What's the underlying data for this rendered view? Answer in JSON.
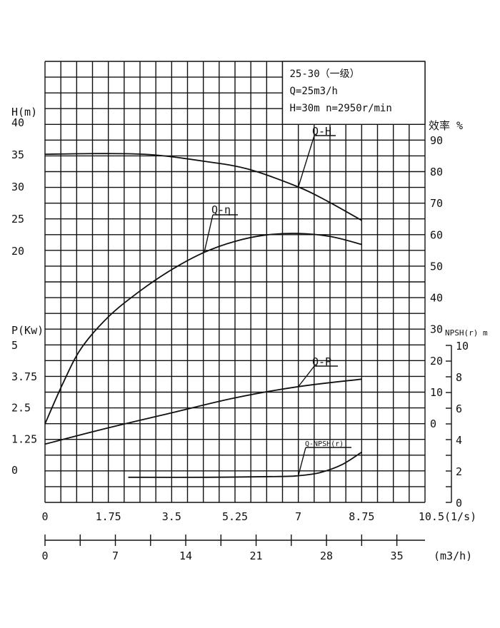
{
  "chart_data": {
    "type": "line",
    "title": "",
    "legend": {
      "lines": [
        "25-30（一级）",
        "Q=25m3/h",
        "H=30m  n=2950r/min"
      ],
      "placement": "top-right"
    },
    "x_axis": {
      "unit": "(1/s)",
      "range": [
        0,
        10.5
      ],
      "tick_values": [
        0,
        1.75,
        3.5,
        5.25,
        7,
        8.75,
        10.5
      ],
      "tick_labels": [
        "0",
        "1.75",
        "3.5",
        "5.25",
        "7",
        "8.75",
        "10.5"
      ]
    },
    "x_axis_secondary": {
      "unit": "(m3/h)",
      "range": [
        0,
        37.8
      ],
      "tick_values": [
        0,
        7,
        14,
        21,
        28,
        35
      ],
      "tick_labels": [
        "0",
        "7",
        "14",
        "21",
        "28",
        "35"
      ]
    },
    "y_axes": {
      "head": {
        "unit": "H(m)",
        "tick_values": [
          20,
          25,
          30,
          35,
          40
        ],
        "tick_labels": [
          "20",
          "25",
          "30",
          "35",
          "40"
        ]
      },
      "power": {
        "unit": "P(Kw)",
        "tick_values": [
          0,
          1.25,
          2.5,
          3.75,
          5
        ],
        "tick_labels": [
          "0",
          "1.25",
          "2.5",
          "3.75",
          "5"
        ]
      },
      "efficiency": {
        "unit": "效率 %",
        "tick_values": [
          0,
          10,
          20,
          30,
          40,
          50,
          60,
          70,
          80,
          90
        ],
        "tick_labels": [
          "0",
          "10",
          "20",
          "30",
          "40",
          "50",
          "60",
          "70",
          "80",
          "90"
        ]
      },
      "npsh": {
        "unit": "NPSH(r) m",
        "range": [
          0,
          10
        ],
        "tick_values": [
          0,
          2,
          4,
          6,
          8,
          10
        ],
        "tick_labels": [
          "0",
          "2",
          "4",
          "6",
          "8",
          "10"
        ]
      }
    },
    "grid": true,
    "series": [
      {
        "name": "Q-H",
        "axis": "head",
        "x": [
          0,
          1.75,
          3.0,
          4.4,
          5.6,
          7.0,
          7.8,
          8.75
        ],
        "values": [
          35.1,
          35.2,
          35.0,
          34.0,
          32.8,
          30.0,
          27.8,
          24.8
        ]
      },
      {
        "name": "Q-η",
        "axis": "efficiency",
        "x": [
          0,
          0.5,
          1.0,
          1.75,
          2.6,
          3.5,
          4.4,
          5.25,
          6.1,
          7.0,
          7.9,
          8.75
        ],
        "values": [
          0,
          13,
          24,
          34,
          42,
          49,
          54.5,
          58,
          60,
          60.5,
          59.5,
          57
        ]
      },
      {
        "name": "Q-P",
        "axis": "power",
        "x": [
          0,
          1.75,
          3.5,
          5.25,
          7.0,
          8.75
        ],
        "values": [
          1.05,
          1.7,
          2.3,
          2.9,
          3.35,
          3.65
        ]
      },
      {
        "name": "Q-NPSH(r)",
        "axis": "npsh",
        "x": [
          2.3,
          4.5,
          6.5,
          7.0,
          7.6,
          8.2,
          8.75
        ],
        "values": [
          1.6,
          1.6,
          1.65,
          1.7,
          1.9,
          2.4,
          3.2
        ]
      }
    ]
  }
}
